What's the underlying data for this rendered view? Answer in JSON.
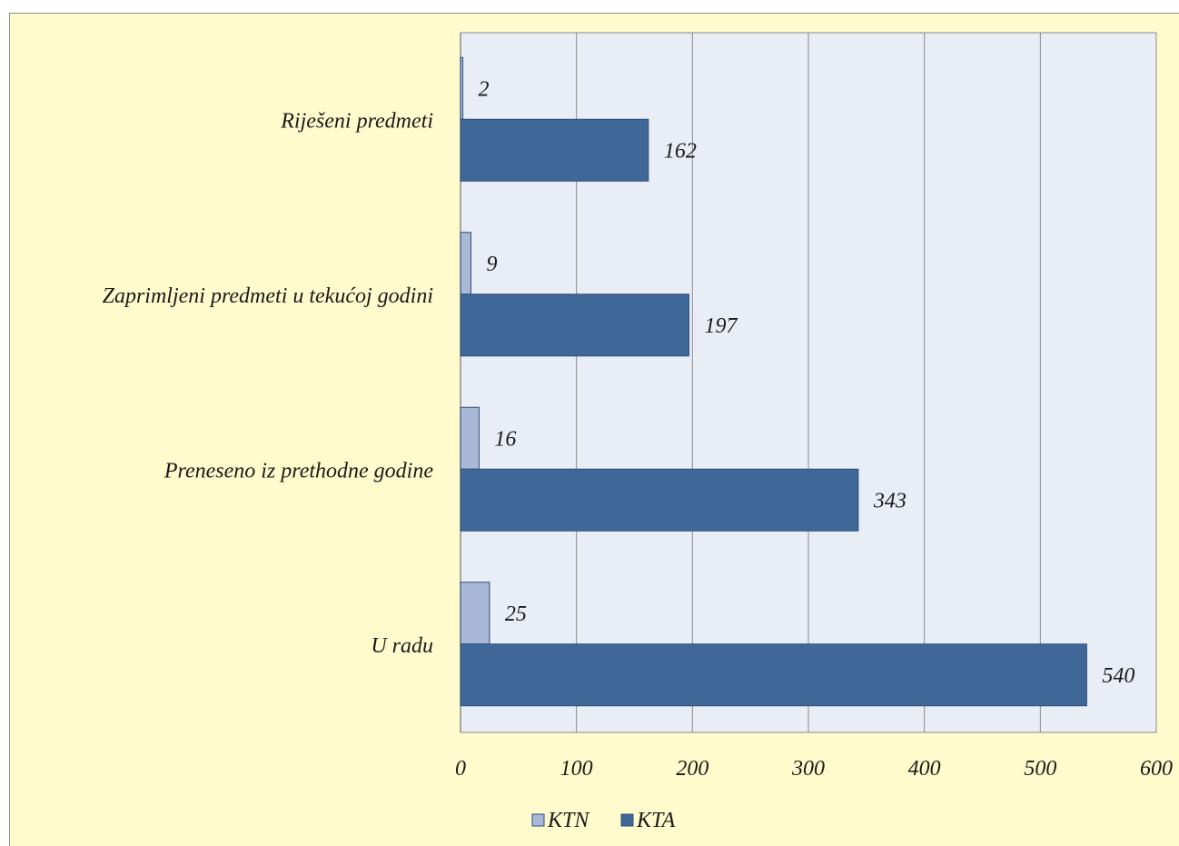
{
  "chart_data": {
    "type": "bar",
    "orientation": "horizontal",
    "categories": [
      "Riješeni predmeti",
      "Zaprimljeni predmeti u tekućoj godini",
      "Preneseno iz prethodne godine",
      "U radu"
    ],
    "series": [
      {
        "name": "KTN",
        "values": [
          2,
          9,
          16,
          25
        ],
        "color": "#a9b8d6"
      },
      {
        "name": "KTA",
        "values": [
          162,
          197,
          343,
          540
        ],
        "color": "#3f6899"
      }
    ],
    "xlim": [
      0,
      600
    ],
    "xticks": [
      "0",
      "100",
      "200",
      "300",
      "400",
      "500",
      "600"
    ],
    "grid": true,
    "data_labels": true,
    "legend_position": "bottom",
    "plot_background": "#e9edf5",
    "chart_background": "#fffbcc"
  }
}
